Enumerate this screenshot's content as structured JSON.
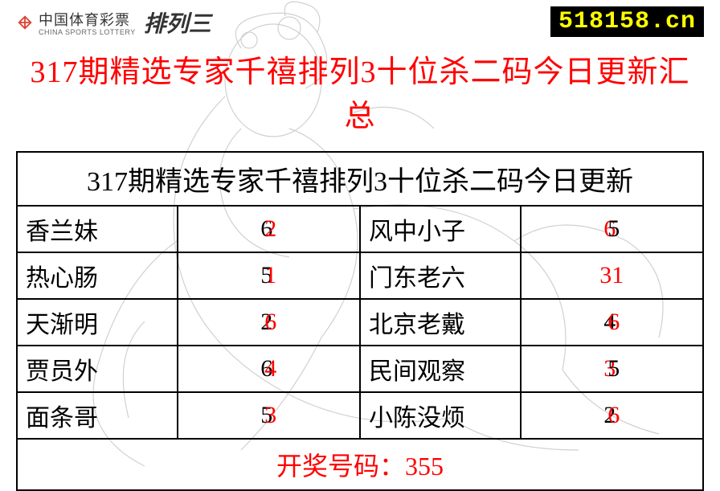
{
  "header": {
    "logo_cn": "中国体育彩票",
    "logo_en": "CHINA SPORTS LOTTERY",
    "brand": "排列三",
    "site": "518158.cn"
  },
  "title": "317期精选专家千禧排列3十位杀二码今日更新汇总",
  "table": {
    "header": "317期精选专家千禧排列3十位杀二码今日更新",
    "rows": [
      {
        "name1": "香兰妹",
        "d1a": "6",
        "d1b": "2",
        "style1": "overlap-right",
        "name2": "风中小子",
        "d2a": "6",
        "d2b": "5",
        "style2": "overlap-left"
      },
      {
        "name1": "热心肠",
        "d1a": "5",
        "d1b": "1",
        "style1": "overlap-right",
        "name2": "门东老六",
        "d2a": "3",
        "d2b": "1",
        "style2": "plain-red"
      },
      {
        "name1": "天渐明",
        "d1a": "2",
        "d1b": "6",
        "style1": "overlap-right",
        "name2": "北京老戴",
        "d2a": "4",
        "d2b": "6",
        "style2": "overlap-right"
      },
      {
        "name1": "贾员外",
        "d1a": "6",
        "d1b": "4",
        "style1": "overlap-right",
        "name2": "民间观察",
        "d2a": "3",
        "d2b": "5",
        "style2": "overlap-left"
      },
      {
        "name1": "面条哥",
        "d1a": "5",
        "d1b": "3",
        "style1": "overlap-right",
        "name2": "小陈没烦",
        "d2a": "2",
        "d2b": "6",
        "style2": "overlap-right"
      }
    ],
    "footer": "开奖号码：355"
  },
  "colors": {
    "red": "#ff0000",
    "black": "#000000",
    "badge_bg": "#000000",
    "badge_fg": "#ffff00",
    "bg": "#ffffff"
  }
}
